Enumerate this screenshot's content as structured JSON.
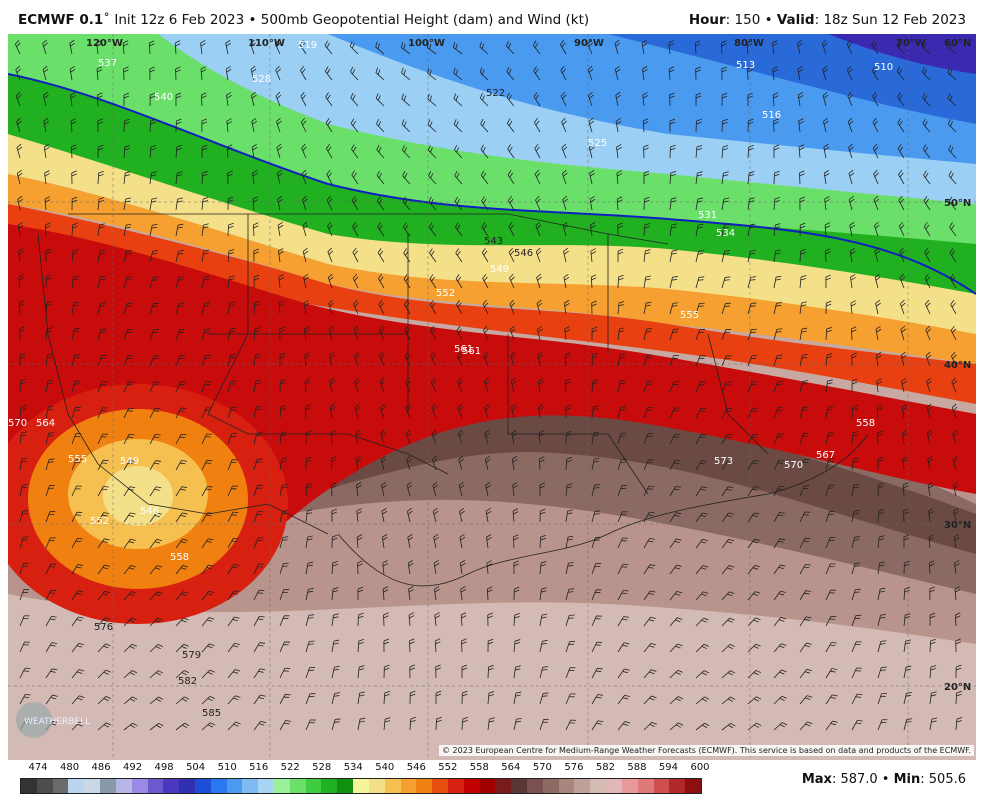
{
  "header": {
    "model": "ECMWF 0.1",
    "init": "Init 12z 6 Feb 2023",
    "product": "500mb Geopotential Height (dam) and Wind (kt)",
    "hour_label": "Hour",
    "hour_value": "150",
    "valid_label": "Valid",
    "valid_value": "18z Sun 12 Feb 2023"
  },
  "map": {
    "lon_labels": [
      "120°W",
      "110°W",
      "100°W",
      "90°W",
      "80°W",
      "70°W",
      "60°N"
    ],
    "lat_labels": [
      "50°N",
      "40°N",
      "30°N",
      "20°N"
    ],
    "contour_labels": [
      "537",
      "528",
      "519",
      "540",
      "522",
      "513",
      "510",
      "516",
      "525",
      "531",
      "534",
      "543",
      "546",
      "549",
      "552",
      "555",
      "561",
      "564",
      "570",
      "555",
      "549",
      "546",
      "552",
      "558",
      "561",
      "573",
      "570",
      "567",
      "558",
      "576",
      "579",
      "582",
      "585"
    ],
    "copyright": "© 2023 European Centre for Medium-Range Weather Forecasts (ECMWF). This service is based on data and products of the ECMWF.",
    "logo_text": "WEATHERBELL"
  },
  "legend": {
    "labels": [
      "474",
      "480",
      "486",
      "492",
      "498",
      "504",
      "510",
      "516",
      "522",
      "528",
      "534",
      "540",
      "546",
      "552",
      "558",
      "564",
      "570",
      "576",
      "582",
      "588",
      "594",
      "600"
    ],
    "colors": [
      "#333333",
      "#4d4d4d",
      "#6b6b6b",
      "#b8d4ee",
      "#c9d7e6",
      "#8899aa",
      "#b7b7e6",
      "#9a8ae6",
      "#6a5acd",
      "#4a38c0",
      "#3030b0",
      "#1a4fd6",
      "#2a78f0",
      "#4a9af0",
      "#7dbbf2",
      "#a8d4f5",
      "#9af09a",
      "#6ae06a",
      "#40cc40",
      "#20b020",
      "#109010",
      "#f5f59a",
      "#f5e08a",
      "#f5c050",
      "#f5a030",
      "#f08010",
      "#e85010",
      "#d82010",
      "#c00000",
      "#a00000",
      "#7a1a1a",
      "#5a3535",
      "#7a5050",
      "#8f6a64",
      "#a8867e",
      "#bea29a",
      "#d4bcb5",
      "#e2b7b7",
      "#e89898",
      "#e07a7a",
      "#d05050",
      "#b02828",
      "#8c1010"
    ]
  },
  "summary": {
    "max_label": "Max",
    "max_value": "587.0",
    "min_label": "Min",
    "min_value": "505.6"
  }
}
